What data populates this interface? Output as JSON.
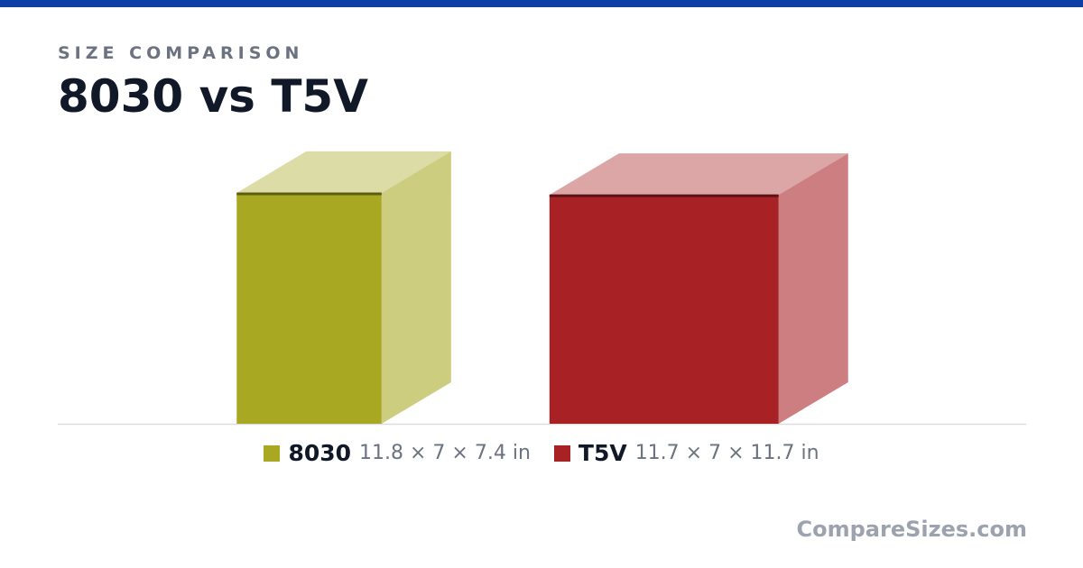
{
  "chart_data": {
    "type": "box3d",
    "subtitle": "SIZE COMPARISON",
    "title": "8030 vs T5V",
    "series": [
      {
        "name": "8030",
        "color": "#a8a823",
        "values": [
          11.8,
          7,
          7.4
        ],
        "value_label": "11.8 × 7 × 7.4 in"
      },
      {
        "name": "T5V",
        "color": "#a82124",
        "values": [
          11.7,
          7,
          11.7
        ],
        "value_label": "11.7 × 7 × 11.7 in"
      }
    ],
    "source": "CompareSizes.com"
  }
}
